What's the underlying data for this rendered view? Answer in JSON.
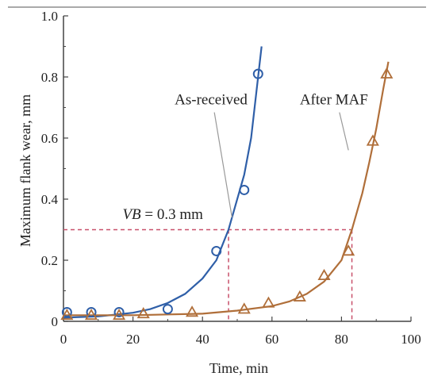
{
  "chart_data": {
    "type": "scatter",
    "xlabel": "Time, min",
    "ylabel": "Maximum flank wear, mm",
    "xlim": [
      0,
      100
    ],
    "ylim": [
      0,
      1.0
    ],
    "x_ticks": [
      0,
      20,
      40,
      60,
      80,
      100
    ],
    "y_ticks": [
      0,
      0.2,
      0.4,
      0.6,
      0.8,
      1.0
    ],
    "x_tick_labels": [
      "0",
      "20",
      "40",
      "60",
      "80",
      "100"
    ],
    "y_tick_labels": [
      "0",
      "0.2",
      "0.4",
      "0.6",
      "0.8",
      "1.0"
    ],
    "grid": false,
    "series": [
      {
        "name": "As-received",
        "marker": "circle",
        "color": "#2f5fa8",
        "points": [
          {
            "x": 1,
            "y": 0.03
          },
          {
            "x": 8,
            "y": 0.03
          },
          {
            "x": 16,
            "y": 0.03
          },
          {
            "x": 30,
            "y": 0.04
          },
          {
            "x": 44,
            "y": 0.23
          },
          {
            "x": 52,
            "y": 0.43
          },
          {
            "x": 56,
            "y": 0.81
          }
        ],
        "fit_curve": [
          [
            0,
            0.012
          ],
          [
            10,
            0.016
          ],
          [
            20,
            0.028
          ],
          [
            25,
            0.04
          ],
          [
            30,
            0.06
          ],
          [
            35,
            0.09
          ],
          [
            40,
            0.14
          ],
          [
            44,
            0.2
          ],
          [
            47.5,
            0.3
          ],
          [
            50,
            0.4
          ],
          [
            52,
            0.48
          ],
          [
            54,
            0.6
          ],
          [
            56,
            0.8
          ],
          [
            57,
            0.9
          ]
        ]
      },
      {
        "name": "After MAF",
        "marker": "triangle",
        "color": "#b06f3a",
        "points": [
          {
            "x": 1,
            "y": 0.02
          },
          {
            "x": 8,
            "y": 0.02
          },
          {
            "x": 16,
            "y": 0.02
          },
          {
            "x": 23,
            "y": 0.025
          },
          {
            "x": 37,
            "y": 0.03
          },
          {
            "x": 52,
            "y": 0.04
          },
          {
            "x": 59,
            "y": 0.06
          },
          {
            "x": 68,
            "y": 0.08
          },
          {
            "x": 75,
            "y": 0.15
          },
          {
            "x": 82,
            "y": 0.23
          },
          {
            "x": 89,
            "y": 0.59
          },
          {
            "x": 93,
            "y": 0.81
          }
        ],
        "fit_curve": [
          [
            0,
            0.02
          ],
          [
            20,
            0.02
          ],
          [
            40,
            0.025
          ],
          [
            50,
            0.035
          ],
          [
            60,
            0.05
          ],
          [
            65,
            0.065
          ],
          [
            70,
            0.09
          ],
          [
            75,
            0.13
          ],
          [
            80,
            0.2
          ],
          [
            83,
            0.3
          ],
          [
            86,
            0.42
          ],
          [
            88,
            0.52
          ],
          [
            90,
            0.63
          ],
          [
            92,
            0.76
          ],
          [
            93.5,
            0.85
          ]
        ]
      }
    ],
    "reference": {
      "label": "VB = 0.3 mm",
      "label_var": "VB",
      "label_rest": " = 0.3 mm",
      "y": 0.3,
      "x_intercepts": [
        47.5,
        83
      ],
      "color": "#c8506a"
    },
    "annotations": [
      {
        "text": "As-received",
        "series": 0,
        "text_at": [
          32,
          0.71
        ],
        "arrow_to": [
          48.5,
          0.34
        ]
      },
      {
        "text": "After MAF",
        "series": 1,
        "text_at": [
          68,
          0.71
        ],
        "arrow_to": [
          82,
          0.56
        ]
      }
    ],
    "axis_color": "#444444",
    "leader_color": "#999999"
  }
}
